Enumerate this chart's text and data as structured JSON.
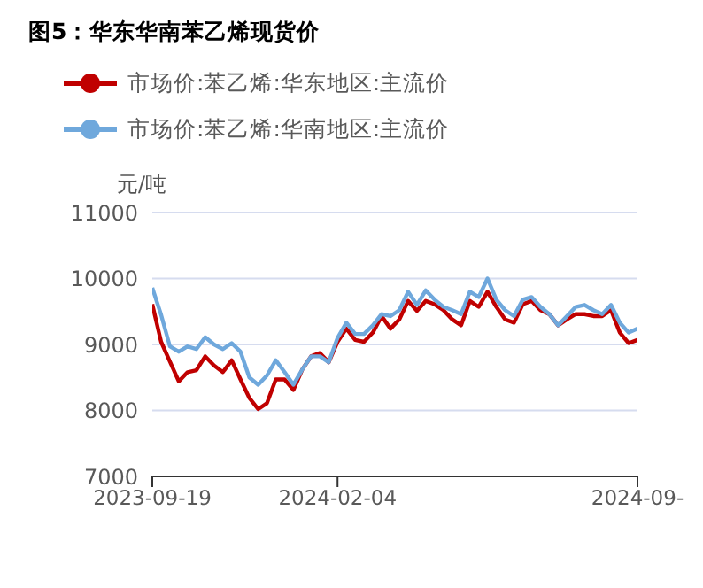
{
  "chart_data": {
    "type": "line",
    "title": "图5：华东华南苯乙烯现货价",
    "ylabel": "元/吨",
    "categories": [
      "2023-09-19",
      null,
      null,
      null,
      null,
      null,
      null,
      null,
      null,
      null,
      null,
      null,
      null,
      null,
      null,
      null,
      null,
      null,
      null,
      null,
      null,
      "2024-02-04",
      null,
      null,
      null,
      null,
      null,
      null,
      null,
      null,
      null,
      null,
      null,
      null,
      null,
      null,
      null,
      null,
      null,
      null,
      null,
      null,
      null,
      null,
      null,
      null,
      null,
      null,
      null,
      null,
      null,
      null,
      null,
      null,
      null,
      "2024-09-"
    ],
    "series": [
      {
        "name": "市场价:苯乙烯:华东地区:主流价",
        "color": "#c00000",
        "values": [
          9610,
          9040,
          8740,
          8440,
          8580,
          8610,
          8820,
          8680,
          8580,
          8760,
          8470,
          8190,
          8020,
          8110,
          8470,
          8470,
          8310,
          8620,
          8820,
          8870,
          8730,
          9040,
          9240,
          9070,
          9040,
          9180,
          9430,
          9240,
          9380,
          9660,
          9510,
          9660,
          9610,
          9520,
          9380,
          9290,
          9660,
          9570,
          9800,
          9570,
          9380,
          9330,
          9610,
          9660,
          9520,
          9460,
          9290,
          9380,
          9460,
          9460,
          9430,
          9430,
          9520,
          9180,
          9020,
          9070
        ]
      },
      {
        "name": "市场价:苯乙烯:华南地区:主流价",
        "color": "#6fa8dc",
        "values": [
          9860,
          9450,
          8970,
          8890,
          8970,
          8930,
          9110,
          9000,
          8930,
          9020,
          8890,
          8500,
          8390,
          8530,
          8760,
          8580,
          8390,
          8620,
          8820,
          8820,
          8730,
          9100,
          9330,
          9160,
          9160,
          9290,
          9460,
          9430,
          9520,
          9800,
          9600,
          9820,
          9680,
          9570,
          9520,
          9460,
          9800,
          9720,
          10000,
          9680,
          9520,
          9430,
          9680,
          9720,
          9570,
          9460,
          9290,
          9430,
          9570,
          9600,
          9520,
          9460,
          9600,
          9330,
          9180,
          9240
        ]
      }
    ],
    "ylim": [
      7000,
      11000
    ],
    "yticks": [
      7000,
      8000,
      9000,
      10000,
      11000
    ],
    "grid": "y",
    "legend": "top left",
    "marker": "none",
    "line_style": "solid"
  }
}
